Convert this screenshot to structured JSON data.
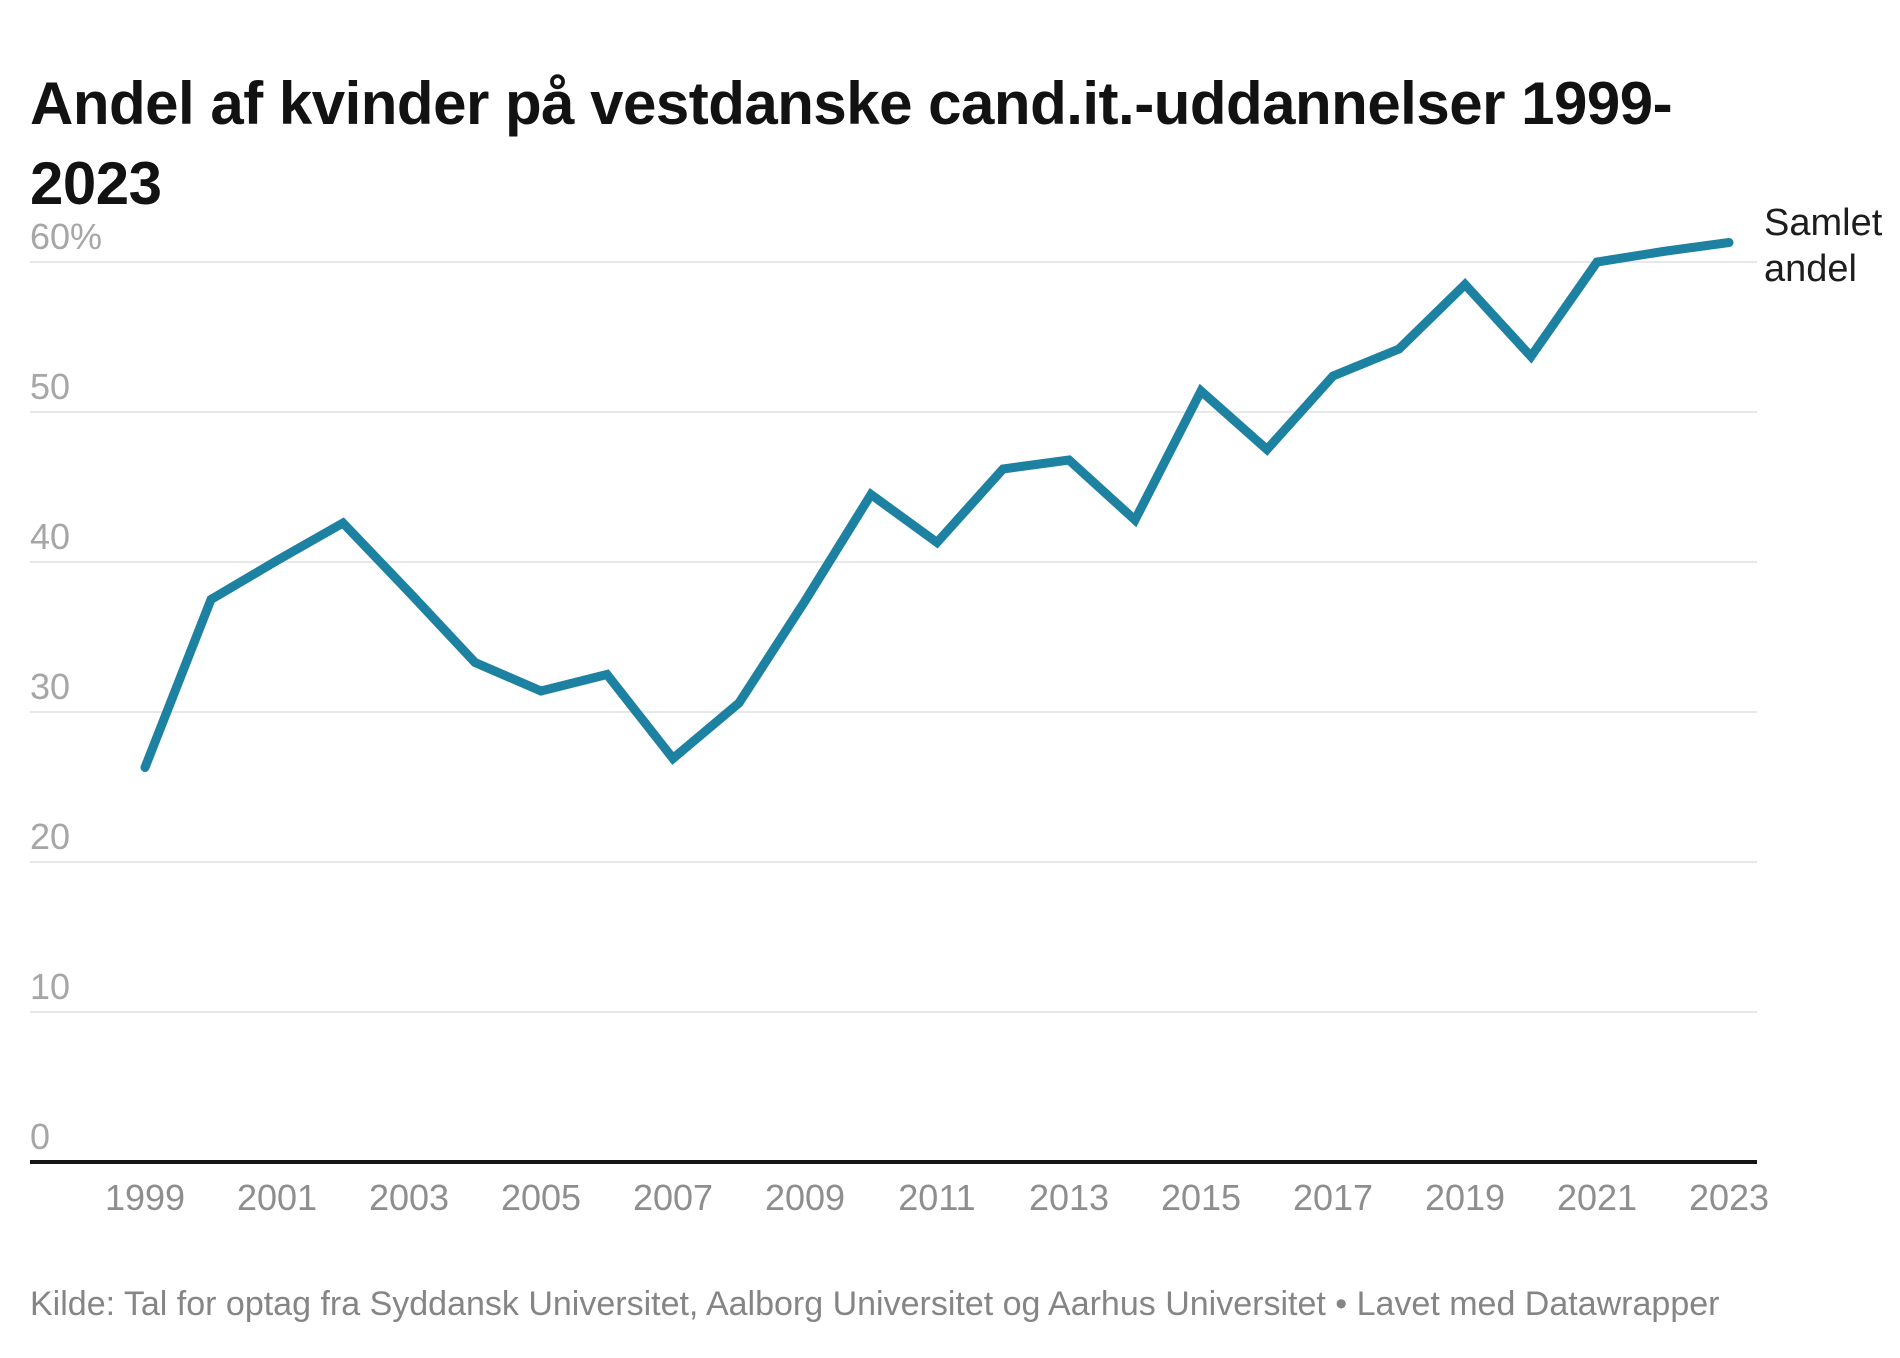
{
  "header": {
    "title_full": "Andel af kvinder på vestdanske cand.it.-uddannelser 1999-2023",
    "title_line1": "Andel af kvinder på vestdanske cand.it.-uddannelser 1999-",
    "title_line2": "2023"
  },
  "chart_data": {
    "type": "line",
    "title": "Andel af kvinder på vestdanske cand.it.-uddannelser 1999-2023",
    "x": [
      1999,
      2000,
      2001,
      2002,
      2003,
      2004,
      2005,
      2006,
      2007,
      2008,
      2009,
      2010,
      2011,
      2012,
      2013,
      2014,
      2015,
      2016,
      2017,
      2018,
      2019,
      2020,
      2021,
      2022,
      2023
    ],
    "series": [
      {
        "name": "Samlet andel",
        "values": [
          26.3,
          37.5,
          40.1,
          42.6,
          38.0,
          33.3,
          31.4,
          32.5,
          26.9,
          30.6,
          37.4,
          44.5,
          41.3,
          46.2,
          46.8,
          42.8,
          51.4,
          47.5,
          52.4,
          54.2,
          58.5,
          53.7,
          60.0,
          60.7,
          61.3
        ]
      }
    ],
    "unit": "%",
    "ylim": [
      0,
      60
    ],
    "yticks": [
      60,
      50,
      40,
      30,
      20,
      10,
      0
    ],
    "ytick_labels": [
      "60%",
      "50",
      "40",
      "30",
      "20",
      "10",
      "0"
    ],
    "xticks": [
      1999,
      2001,
      2003,
      2005,
      2007,
      2009,
      2011,
      2013,
      2015,
      2017,
      2019,
      2021,
      2023
    ],
    "grid": "horizontal",
    "legend_position": "end-of-line-right",
    "line_color": "#1d81a2",
    "gridline_color": "#e8e8e8",
    "axis_line_color": "#161616",
    "ytick_label_color": "#a6a6a6",
    "xtick_label_color": "#8e8e8e"
  },
  "annotation": {
    "series_label_line1": "Samlet",
    "series_label_line2": "andel"
  },
  "footer": {
    "text": "Kilde: Tal for optag fra Syddansk Universitet, Aalborg Universitet og Aarhus Universitet • Lavet med Datawrapper"
  }
}
